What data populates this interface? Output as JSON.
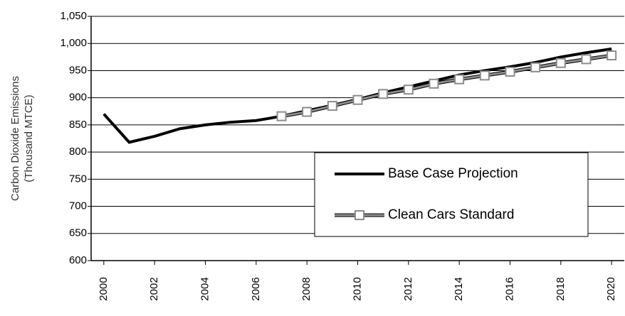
{
  "chart_data": {
    "type": "line",
    "y_label": [
      "Carbon Dioxide Emissions",
      "(Thousand MTCE)"
    ],
    "x": [
      2000,
      2001,
      2002,
      2003,
      2004,
      2005,
      2006,
      2007,
      2008,
      2009,
      2010,
      2011,
      2012,
      2013,
      2014,
      2015,
      2016,
      2017,
      2018,
      2019,
      2020
    ],
    "series": [
      {
        "name": "Base Case Projection",
        "color": "#000000",
        "marker": "none",
        "values": [
          870,
          818,
          829,
          843,
          850,
          855,
          858,
          866,
          876,
          886,
          897,
          909,
          920,
          931,
          942,
          950,
          957,
          965,
          975,
          983,
          990
        ]
      },
      {
        "name": "Clean Cars Standard",
        "color": "#8c8c8c",
        "marker": "square",
        "values": [
          null,
          null,
          null,
          null,
          null,
          null,
          null,
          866,
          874,
          885,
          896,
          907,
          915,
          926,
          934,
          941,
          948,
          956,
          964,
          971,
          978
        ]
      }
    ],
    "xlim": [
      1999.5,
      2020.5
    ],
    "xticks": [
      2000,
      2002,
      2004,
      2006,
      2008,
      2010,
      2012,
      2014,
      2016,
      2018,
      2020
    ],
    "ylim": [
      600,
      1050
    ],
    "yticks": [
      600,
      650,
      700,
      750,
      800,
      850,
      900,
      950,
      {
        "value": 1000,
        "label": "1,000"
      },
      {
        "value": 1050,
        "label": "1,050"
      }
    ],
    "grid": true
  }
}
